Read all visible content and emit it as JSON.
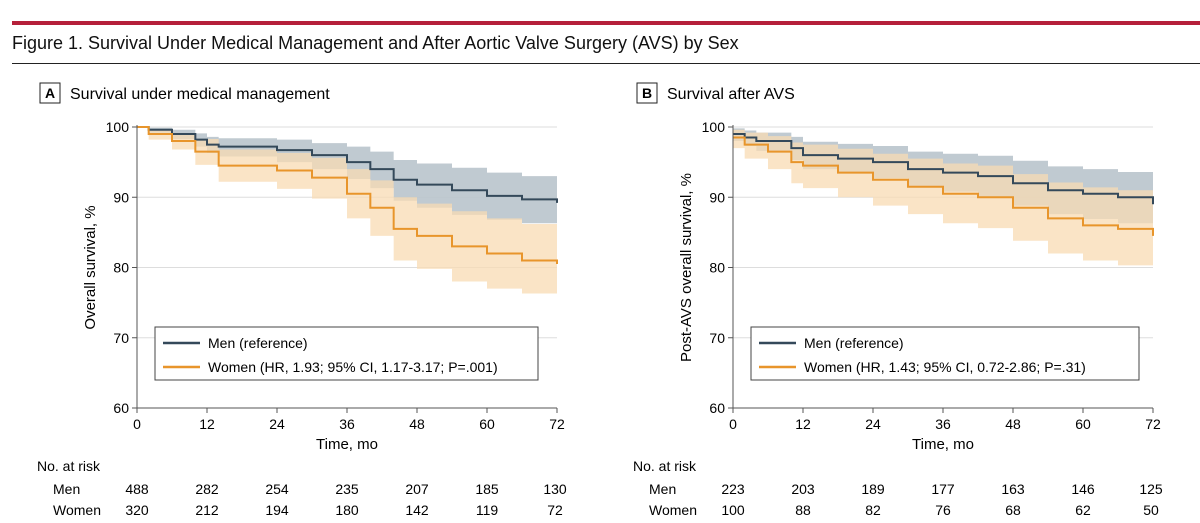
{
  "figure_title": "Figure 1. Survival Under Medical Management and After Aortic Valve Surgery (AVS) by Sex",
  "colors": {
    "men": "#34495a",
    "women": "#e8952b",
    "men_ci": "#b9c4cc",
    "women_ci": "#f8dbb3",
    "accent": "#b5203a"
  },
  "chart_data": [
    {
      "type": "line",
      "panel": "A",
      "title": "Survival under medical management",
      "xlabel": "Time, mo",
      "ylabel": "Overall survival, %",
      "xlim": [
        0,
        72
      ],
      "ylim": [
        60,
        100
      ],
      "xticks": [
        0,
        12,
        24,
        36,
        48,
        60,
        72
      ],
      "yticks": [
        60,
        70,
        80,
        90,
        100
      ],
      "grid": "horizontal",
      "legend_placement": "bottom-left",
      "series": [
        {
          "name": "Men (reference)",
          "x": [
            0,
            2,
            6,
            10,
            12,
            14,
            24,
            30,
            36,
            40,
            44,
            48,
            54,
            60,
            66,
            72
          ],
          "y": [
            100,
            99.6,
            99,
            98.2,
            97.5,
            97.2,
            96.7,
            96,
            95,
            94,
            92.5,
            91.8,
            91,
            90.2,
            89.7,
            89.2
          ],
          "ci_lower": [
            100,
            99.2,
            98.3,
            97.2,
            96.3,
            95.8,
            95,
            94,
            92.6,
            91.3,
            89.5,
            88.5,
            87.5,
            86.8,
            86.3,
            86
          ],
          "ci_upper": [
            100,
            99.9,
            99.6,
            99.1,
            98.6,
            98.4,
            98.2,
            97.7,
            97.2,
            96.5,
            95.3,
            94.8,
            94.2,
            93.5,
            93,
            92.5
          ]
        },
        {
          "name": "Women (HR, 1.93; 95% CI, 1.17-3.17; P=.001)",
          "x": [
            0,
            2,
            6,
            10,
            14,
            24,
            30,
            36,
            40,
            44,
            48,
            54,
            60,
            66,
            72
          ],
          "y": [
            100,
            99,
            98,
            96.5,
            94.5,
            93.8,
            92.8,
            90.5,
            88.5,
            85.5,
            84.5,
            83,
            82,
            81,
            80.5
          ],
          "ci_lower": [
            100,
            98.2,
            96.8,
            94.6,
            92.2,
            91.2,
            89.8,
            87,
            84.5,
            81,
            79.8,
            78,
            77,
            76.3,
            76
          ],
          "ci_upper": [
            100,
            99.6,
            99.1,
            98.3,
            96.8,
            96.3,
            95.6,
            94,
            92.4,
            90,
            89.1,
            88,
            87,
            86.2,
            85.5
          ]
        }
      ],
      "risk_table": {
        "label": "No. at risk",
        "rows": [
          {
            "group": "Men",
            "values": [
              488,
              282,
              254,
              235,
              207,
              185,
              130
            ]
          },
          {
            "group": "Women",
            "values": [
              320,
              212,
              194,
              180,
              142,
              119,
              72
            ]
          }
        ]
      }
    },
    {
      "type": "line",
      "panel": "B",
      "title": "Survival after AVS",
      "xlabel": "Time, mo",
      "ylabel": "Post-AVS overall survival, %",
      "xlim": [
        0,
        72
      ],
      "ylim": [
        60,
        100
      ],
      "xticks": [
        0,
        12,
        24,
        36,
        48,
        60,
        72
      ],
      "yticks": [
        60,
        70,
        80,
        90,
        100
      ],
      "grid": "horizontal",
      "legend_placement": "bottom-left",
      "series": [
        {
          "name": "Men (reference)",
          "x": [
            0,
            2,
            4,
            10,
            12,
            18,
            24,
            30,
            36,
            42,
            48,
            54,
            60,
            66,
            72
          ],
          "y": [
            99,
            98.5,
            98,
            97,
            96,
            95.5,
            95,
            94,
            93.5,
            93,
            92,
            91,
            90.5,
            90,
            89
          ],
          "ci_lower": [
            98,
            97.3,
            96.6,
            95.3,
            94,
            93.4,
            92.7,
            91.5,
            90.8,
            90,
            88.8,
            87.6,
            86.9,
            86.3,
            85.5
          ],
          "ci_upper": [
            99.8,
            99.5,
            99.2,
            98.6,
            97.9,
            97.6,
            97.3,
            96.5,
            96.2,
            95.9,
            95.2,
            94.4,
            94,
            93.6,
            92.5
          ]
        },
        {
          "name": "Women (HR, 1.43; 95% CI, 0.72-2.86; P=.31)",
          "x": [
            0,
            2,
            6,
            10,
            12,
            18,
            24,
            30,
            36,
            42,
            48,
            54,
            60,
            66,
            72
          ],
          "y": [
            98.5,
            97.5,
            96.5,
            95,
            94.5,
            93.5,
            92.5,
            91.5,
            90.5,
            90,
            88.5,
            87,
            86,
            85.5,
            84.5
          ],
          "ci_lower": [
            97,
            95.5,
            94,
            92,
            91.3,
            90,
            88.8,
            87.6,
            86.3,
            85.6,
            83.8,
            82,
            81,
            80.3,
            79
          ],
          "ci_upper": [
            99.6,
            99.2,
            98.7,
            97.8,
            97.5,
            96.9,
            96.2,
            95.5,
            94.8,
            94.5,
            93.3,
            92.1,
            91.4,
            91,
            90.3
          ]
        }
      ],
      "risk_table": {
        "label": "No. at risk",
        "rows": [
          {
            "group": "Men",
            "values": [
              223,
              203,
              189,
              177,
              163,
              146,
              125
            ]
          },
          {
            "group": "Women",
            "values": [
              100,
              88,
              82,
              76,
              68,
              62,
              50
            ]
          }
        ]
      }
    }
  ]
}
